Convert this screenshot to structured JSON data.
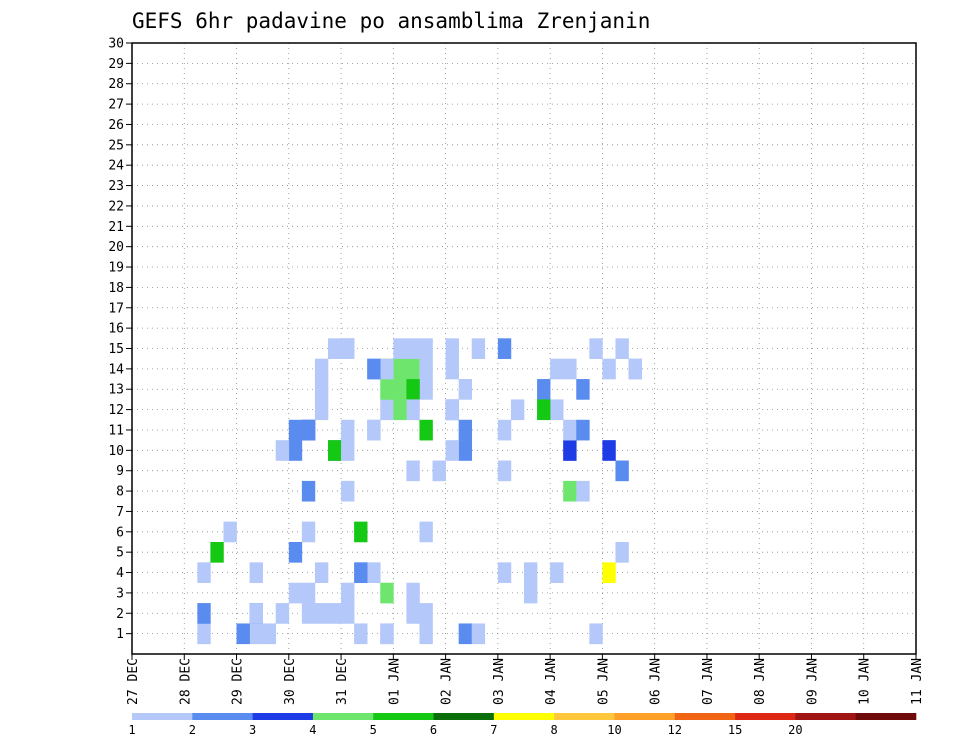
{
  "chart_data": {
    "type": "heatmap",
    "title": "GEFS 6hr padavine po ansamblima Zrenjanin",
    "y_ticks": [
      "1",
      "2",
      "3",
      "4",
      "5",
      "6",
      "7",
      "8",
      "9",
      "10",
      "11",
      "12",
      "13",
      "14",
      "15",
      "16",
      "17",
      "18",
      "19",
      "20",
      "21",
      "22",
      "23",
      "24",
      "25",
      "26",
      "27",
      "28",
      "29",
      "30"
    ],
    "y_range": [
      0,
      30
    ],
    "x_ticks": [
      "27 DEC",
      "28 DEC",
      "29 DEC",
      "30 DEC",
      "31 DEC",
      "01 JAN",
      "02 JAN",
      "03 JAN",
      "04 JAN",
      "05 JAN",
      "06 JAN",
      "07 JAN",
      "08 JAN",
      "09 JAN",
      "10 JAN",
      "11 JAN"
    ],
    "x_range_days": [
      0,
      15
    ],
    "time_step_hours": 6,
    "grid": true,
    "legend": {
      "position": "bottom",
      "labels": [
        "1",
        "2",
        "3",
        "4",
        "5",
        "6",
        "7",
        "8",
        "10",
        "12",
        "15",
        "20"
      ],
      "colors": [
        "#b4c8fa",
        "#5a8cf0",
        "#1e3ce6",
        "#6ee66e",
        "#14c814",
        "#0a6e0a",
        "#ffff00",
        "#ffc83c",
        "#ffa028",
        "#f06414",
        "#dc2814",
        "#a01414",
        "#6e0a0a"
      ]
    },
    "cells": [
      [
        5,
        1,
        1
      ],
      [
        9,
        1,
        1
      ],
      [
        12,
        3,
        1
      ],
      [
        13,
        3,
        1
      ],
      [
        17,
        1,
        1
      ],
      [
        19,
        1,
        1
      ],
      [
        22,
        1,
        1
      ],
      [
        5,
        2,
        2
      ],
      [
        9,
        2,
        2
      ],
      [
        14,
        2,
        1
      ],
      [
        22,
        2,
        1
      ],
      [
        5,
        4,
        1
      ],
      [
        9,
        4,
        1
      ],
      [
        18,
        4,
        1
      ],
      [
        28,
        4,
        1
      ],
      [
        30,
        4,
        1
      ],
      [
        32,
        4,
        1
      ],
      [
        6,
        5,
        5
      ],
      [
        12,
        10,
        2
      ],
      [
        13,
        8,
        2
      ],
      [
        15,
        10,
        2
      ],
      [
        16,
        11,
        1
      ],
      [
        19,
        12,
        1
      ],
      [
        22,
        13,
        1
      ],
      [
        24,
        12,
        3
      ],
      [
        25,
        11,
        2
      ],
      [
        31,
        13,
        2
      ],
      [
        32,
        14,
        1
      ],
      [
        35,
        15,
        1
      ],
      [
        36,
        14,
        1
      ],
      [
        7,
        6,
        1
      ],
      [
        11,
        10,
        1
      ],
      [
        13,
        2,
        1
      ],
      [
        14,
        13,
        1
      ],
      [
        15,
        10,
        5
      ],
      [
        22,
        6,
        1
      ],
      [
        29,
        12,
        1
      ],
      [
        33,
        14,
        1
      ],
      [
        8,
        1,
        2
      ],
      [
        13,
        11,
        3
      ],
      [
        15,
        15,
        1
      ],
      [
        16,
        15,
        1
      ],
      [
        19,
        14,
        4
      ],
      [
        20,
        14,
        4
      ],
      [
        21,
        14,
        4
      ],
      [
        24,
        15,
        1
      ],
      [
        25,
        13,
        1
      ],
      [
        32,
        12,
        1
      ],
      [
        9,
        2,
        1
      ],
      [
        12,
        11,
        2
      ],
      [
        16,
        10,
        1
      ],
      [
        18,
        11,
        1
      ],
      [
        28,
        15,
        2
      ],
      [
        34,
        13,
        2
      ],
      [
        10,
        1,
        1
      ],
      [
        19,
        13,
        4
      ],
      [
        20,
        13,
        4
      ],
      [
        21,
        13,
        5
      ],
      [
        22,
        11,
        5
      ],
      [
        33,
        8,
        4
      ],
      [
        36,
        10,
        3
      ],
      [
        11,
        2,
        1
      ],
      [
        14,
        14,
        1
      ],
      [
        18,
        14,
        1
      ],
      [
        22,
        15,
        1
      ],
      [
        26,
        15,
        1
      ],
      [
        37,
        9,
        2
      ],
      [
        12,
        5,
        2
      ],
      [
        13,
        11,
        2
      ],
      [
        14,
        4,
        1
      ],
      [
        16,
        8,
        1
      ],
      [
        17,
        6,
        5
      ],
      [
        18,
        11,
        1
      ],
      [
        19,
        14,
        1
      ],
      [
        20,
        15,
        1
      ],
      [
        21,
        15,
        1
      ],
      [
        13,
        6,
        1
      ],
      [
        16,
        2,
        1
      ],
      [
        21,
        12,
        1
      ],
      [
        25,
        1,
        2
      ],
      [
        28,
        11,
        1
      ],
      [
        33,
        10,
        1
      ],
      [
        36,
        4,
        7
      ],
      [
        37,
        5,
        1
      ],
      [
        38,
        14,
        1
      ],
      [
        14,
        12,
        1
      ],
      [
        16,
        15,
        1
      ],
      [
        19,
        3,
        4
      ],
      [
        20,
        12,
        4
      ],
      [
        21,
        9,
        1
      ],
      [
        24,
        14,
        1
      ],
      [
        25,
        10,
        2
      ],
      [
        26,
        1,
        1
      ],
      [
        33,
        10,
        3
      ],
      [
        34,
        8,
        1
      ],
      [
        15,
        2,
        1
      ],
      [
        17,
        4,
        1
      ],
      [
        21,
        3,
        1
      ],
      [
        22,
        14,
        1
      ],
      [
        30,
        3,
        1
      ],
      [
        33,
        11,
        1
      ],
      [
        37,
        15,
        1
      ],
      [
        16,
        3,
        1
      ],
      [
        18,
        14,
        2
      ],
      [
        19,
        1,
        1
      ],
      [
        24,
        10,
        1
      ],
      [
        28,
        9,
        1
      ],
      [
        34,
        11,
        2
      ],
      [
        38,
        14,
        1
      ],
      [
        17,
        4,
        2
      ],
      [
        21,
        2,
        1
      ],
      [
        23,
        9,
        1
      ],
      [
        24,
        12,
        1
      ],
      [
        31,
        12,
        5
      ],
      [
        35,
        1,
        1
      ]
    ]
  }
}
